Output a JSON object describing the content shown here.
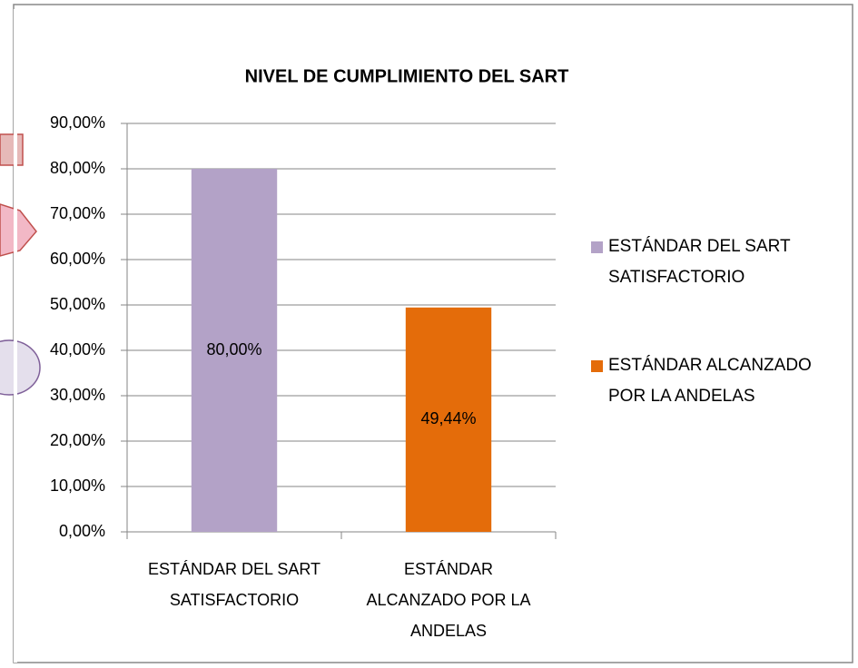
{
  "chart_data": {
    "type": "bar",
    "title": "NIVEL DE CUMPLIMIENTO DEL SART",
    "categories": [
      "ESTÁNDAR DEL SART SATISFACTORIO",
      "ESTÁNDAR ALCANZADO POR LA ANDELAS"
    ],
    "values": [
      80,
      49.44
    ],
    "value_labels": [
      "80,00%",
      "49,44%"
    ],
    "colors": [
      "#b3a2c7",
      "#e46c0a"
    ],
    "ylim": [
      0,
      90
    ],
    "yticks": [
      {
        "value": 0,
        "label": "0,00%"
      },
      {
        "value": 10,
        "label": "10,00%"
      },
      {
        "value": 20,
        "label": "20,00%"
      },
      {
        "value": 30,
        "label": "30,00%"
      },
      {
        "value": 40,
        "label": "40,00%"
      },
      {
        "value": 50,
        "label": "50,00%"
      },
      {
        "value": 60,
        "label": "60,00%"
      },
      {
        "value": 70,
        "label": "70,00%"
      },
      {
        "value": 80,
        "label": "80,00%"
      },
      {
        "value": 90,
        "label": "90,00%"
      }
    ],
    "grid": true,
    "legend": "right"
  }
}
